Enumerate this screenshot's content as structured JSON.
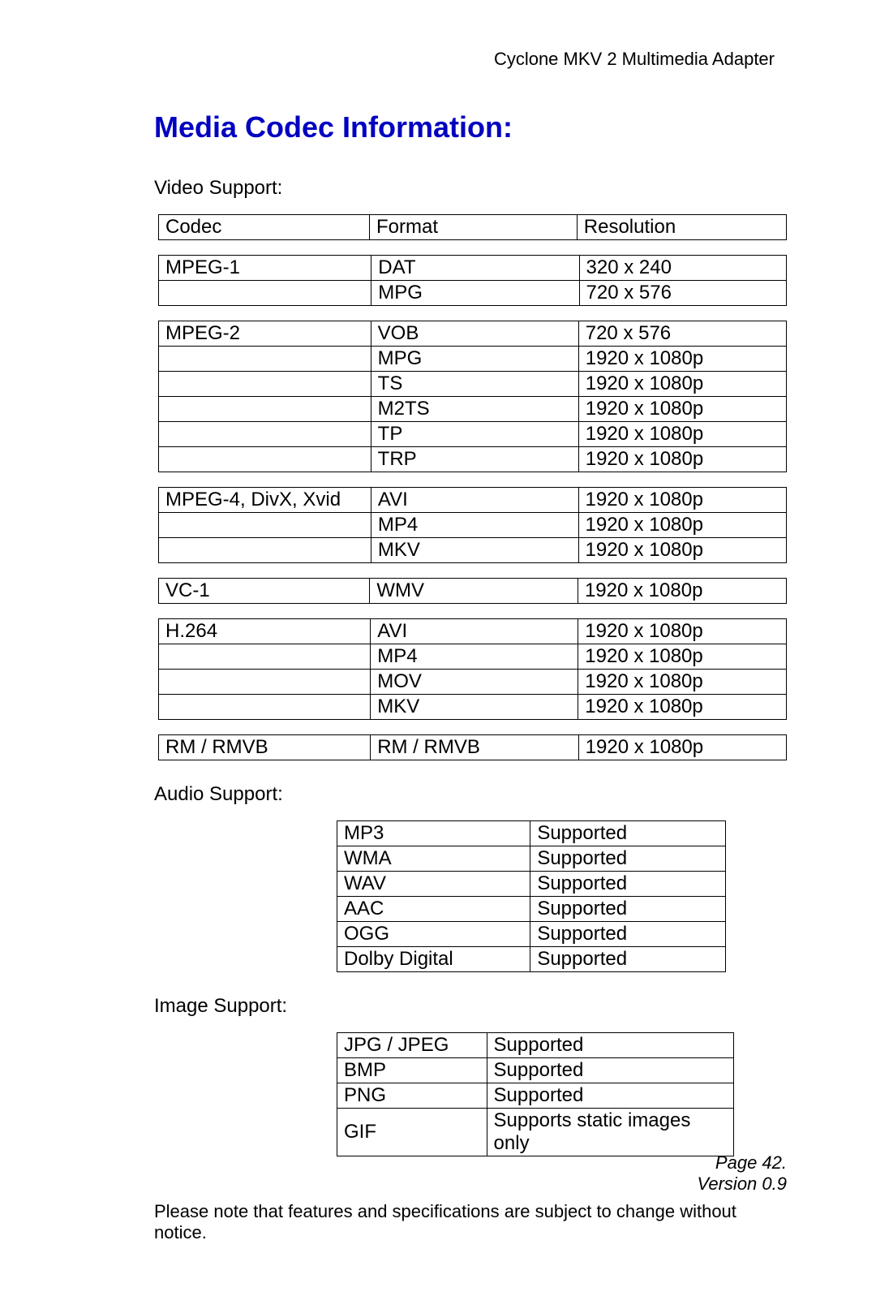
{
  "header": "Cyclone MKV 2 Multimedia Adapter",
  "title": "Media Codec Information:",
  "video_label": "Video Support:",
  "video_header": {
    "c1": "Codec",
    "c2": "Format",
    "c3": "Resolution"
  },
  "video": [
    {
      "codec": "MPEG-1",
      "rows": [
        {
          "format": "DAT",
          "res": "320 x 240"
        },
        {
          "format": "MPG",
          "res": "720 x 576"
        }
      ]
    },
    {
      "codec": "MPEG-2",
      "rows": [
        {
          "format": "VOB",
          "res": "720 x 576"
        },
        {
          "format": "MPG",
          "res": "1920 x 1080p"
        },
        {
          "format": "TS",
          "res": "1920 x 1080p"
        },
        {
          "format": "M2TS",
          "res": "1920 x 1080p"
        },
        {
          "format": "TP",
          "res": "1920 x 1080p"
        },
        {
          "format": "TRP",
          "res": "1920 x 1080p"
        }
      ]
    },
    {
      "codec": "MPEG-4, DivX, Xvid",
      "rows": [
        {
          "format": "AVI",
          "res": "1920 x 1080p"
        },
        {
          "format": "MP4",
          "res": "1920 x 1080p"
        },
        {
          "format": "MKV",
          "res": "1920 x 1080p"
        }
      ]
    },
    {
      "codec": "VC-1",
      "rows": [
        {
          "format": "WMV",
          "res": "1920 x 1080p"
        }
      ]
    },
    {
      "codec": "H.264",
      "rows": [
        {
          "format": "AVI",
          "res": "1920 x 1080p"
        },
        {
          "format": "MP4",
          "res": "1920 x 1080p"
        },
        {
          "format": "MOV",
          "res": "1920 x 1080p"
        },
        {
          "format": "MKV",
          "res": "1920 x 1080p"
        }
      ]
    },
    {
      "codec": "RM / RMVB",
      "rows": [
        {
          "format": "RM / RMVB",
          "res": "1920 x 1080p"
        }
      ]
    }
  ],
  "audio_label": "Audio Support:",
  "audio": [
    {
      "fmt": "MP3",
      "sup": "Supported"
    },
    {
      "fmt": "WMA",
      "sup": "Supported"
    },
    {
      "fmt": "WAV",
      "sup": "Supported"
    },
    {
      "fmt": "AAC",
      "sup": "Supported"
    },
    {
      "fmt": "OGG",
      "sup": "Supported"
    },
    {
      "fmt": "Dolby Digital",
      "sup": "Supported"
    }
  ],
  "image_label": "Image Support:",
  "image": [
    {
      "fmt": "JPG / JPEG",
      "sup": "Supported"
    },
    {
      "fmt": "BMP",
      "sup": "Supported"
    },
    {
      "fmt": "PNG",
      "sup": "Supported"
    },
    {
      "fmt": "GIF",
      "sup": "Supports static images only"
    }
  ],
  "note": "Please note that features and specifications are subject to change without notice.",
  "footer": {
    "page": "Page 42.",
    "version": "Version 0.9"
  },
  "style": {
    "title_color": "#0000c0",
    "border_color": "#000000",
    "body_font_size": 24,
    "header_font_size": 22
  }
}
